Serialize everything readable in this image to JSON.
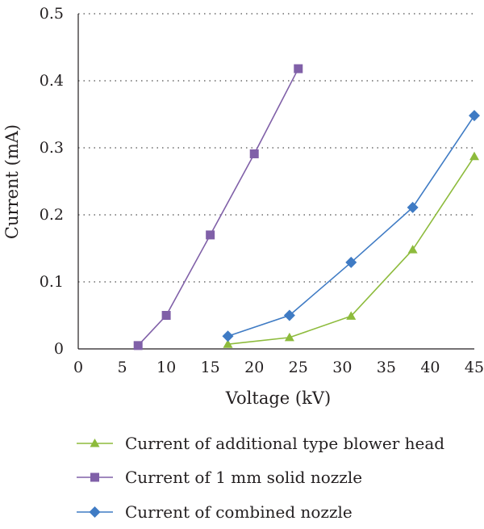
{
  "chart_data": {
    "type": "line",
    "xlabel": "Voltage (kV)",
    "ylabel": "Current (mA)",
    "xlim": [
      0,
      45
    ],
    "ylim": [
      0,
      0.5
    ],
    "x_ticks": [
      "0",
      "5",
      "10",
      "15",
      "20",
      "25",
      "30",
      "35",
      "40",
      "45"
    ],
    "x_tick_values": [
      0,
      5,
      10,
      15,
      20,
      25,
      30,
      35,
      40,
      45
    ],
    "y_ticks": [
      "0",
      "0.1",
      "0.2",
      "0.3",
      "0.4",
      "0.5"
    ],
    "y_tick_values": [
      0,
      0.1,
      0.2,
      0.3,
      0.4,
      0.5
    ],
    "grid": "horizontal dotted",
    "legend_position": "bottom",
    "series": [
      {
        "name": "Current of additional type blower head",
        "color": "#8dbb3c",
        "marker": "triangle",
        "x": [
          17,
          24,
          31,
          38,
          45
        ],
        "y": [
          0.007,
          0.017,
          0.049,
          0.148,
          0.287
        ]
      },
      {
        "name": "Current of 1 mm solid nozzle",
        "color": "#8060a8",
        "marker": "square",
        "x": [
          6.8,
          10,
          15,
          20,
          25
        ],
        "y": [
          0.005,
          0.05,
          0.17,
          0.291,
          0.418
        ]
      },
      {
        "name": "Current of combined nozzle",
        "color": "#3f7bc4",
        "marker": "diamond",
        "x": [
          17,
          24,
          31,
          38,
          45
        ],
        "y": [
          0.019,
          0.05,
          0.129,
          0.211,
          0.348
        ]
      }
    ]
  }
}
